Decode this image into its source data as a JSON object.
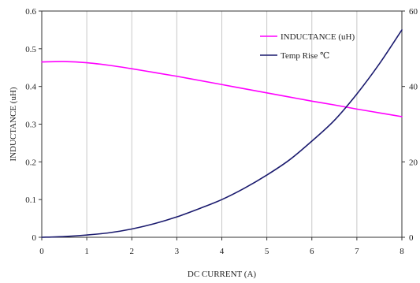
{
  "chart_data": {
    "type": "line",
    "title": "",
    "xlabel": "DC CURRENT  (A)",
    "ylabel": "INDUCTANCE (uH)",
    "y2label": "",
    "xlim": [
      0,
      8
    ],
    "ylim": [
      0,
      0.6
    ],
    "y2lim": [
      0,
      60
    ],
    "x_ticks": [
      "0",
      "1",
      "2",
      "3",
      "4",
      "5",
      "6",
      "7",
      "8"
    ],
    "y_ticks": [
      "0",
      "0.1",
      "0.2",
      "0.3",
      "0.4",
      "0.5",
      "0.6"
    ],
    "y2_ticks": [
      "0",
      "20",
      "40",
      "60"
    ],
    "grid": "vertical",
    "legend_position": "top-right",
    "series": [
      {
        "name": "INDUCTANCE (uH)",
        "axis": "left",
        "color": "#ff00ff",
        "x": [
          0,
          0.5,
          1,
          1.5,
          2,
          2.5,
          3,
          3.5,
          4,
          4.5,
          5,
          5.5,
          6,
          6.5,
          7,
          7.5,
          8
        ],
        "values": [
          0.465,
          0.466,
          0.463,
          0.456,
          0.447,
          0.437,
          0.427,
          0.416,
          0.405,
          0.394,
          0.383,
          0.372,
          0.361,
          0.351,
          0.34,
          0.33,
          0.32
        ]
      },
      {
        "name": "Temp Rise ℃",
        "axis": "right",
        "color": "#1a1a6e",
        "x": [
          0,
          0.5,
          1,
          1.5,
          2,
          2.5,
          3,
          3.5,
          4,
          4.5,
          5,
          5.5,
          6,
          6.5,
          7,
          7.5,
          8
        ],
        "values": [
          0,
          0.2,
          0.6,
          1.2,
          2.2,
          3.6,
          5.4,
          7.6,
          10,
          13,
          16.5,
          20.5,
          25.5,
          31,
          38,
          46,
          55
        ]
      }
    ]
  }
}
